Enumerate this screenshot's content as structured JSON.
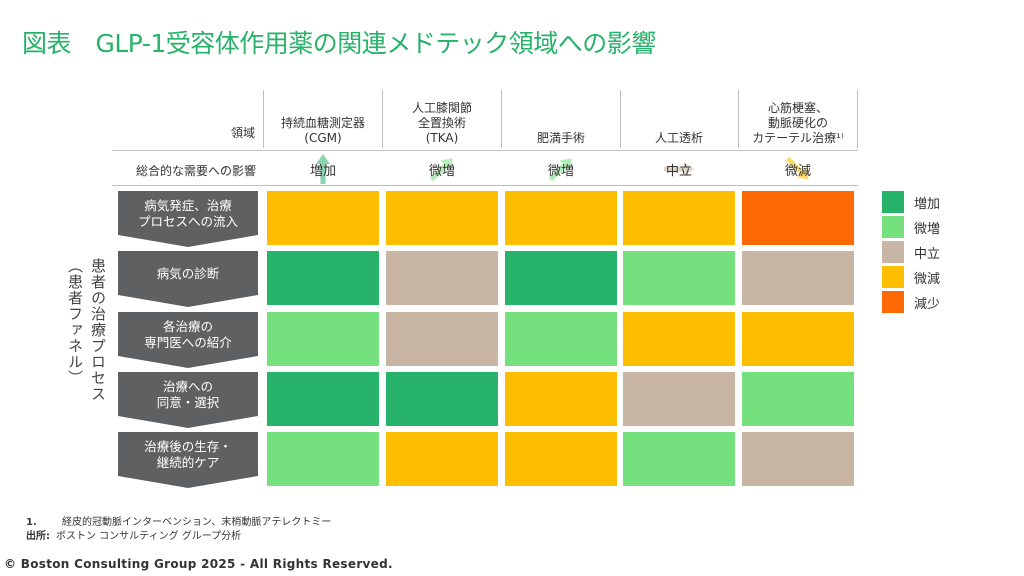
{
  "title": "図表　GLP-1受容体作用薬の関連メドテック領域への影響",
  "header": {
    "domain_label": "領域",
    "overall_label": "総合的な需要への影響"
  },
  "columns": [
    {
      "lines": [
        "持続血糖測定器",
        "(CGM)"
      ],
      "overall": "増加",
      "arrow": "up"
    },
    {
      "lines": [
        "人工膝関節",
        "全置換術",
        "(TKA)"
      ],
      "overall": "微増",
      "arrow": "up-right"
    },
    {
      "lines": [
        "肥満手術"
      ],
      "overall": "微増",
      "arrow": "up-right"
    },
    {
      "lines": [
        "人工透析"
      ],
      "overall": "中立",
      "arrow": "flat"
    },
    {
      "lines": [
        "心筋梗塞、",
        "動脈硬化の",
        "カテーテル治療¹⁾"
      ],
      "overall": "微減",
      "arrow": "down-right"
    }
  ],
  "side_label": {
    "main": "患者の治療プロセス",
    "sub": "（患者ファネル）"
  },
  "process_steps": [
    {
      "lines": [
        "病気発症、治療",
        "プロセスへの流入"
      ]
    },
    {
      "lines": [
        "病気の診断"
      ]
    },
    {
      "lines": [
        "各治療の",
        "専門医への紹介"
      ]
    },
    {
      "lines": [
        "治療への",
        "同意・選択"
      ]
    },
    {
      "lines": [
        "治療後の生存・",
        "継続的ケア"
      ]
    }
  ],
  "matrix": [
    [
      "微減",
      "微減",
      "微減",
      "微減",
      "減少"
    ],
    [
      "増加",
      "中立",
      "増加",
      "微増",
      "中立"
    ],
    [
      "微増",
      "中立",
      "微増",
      "微減",
      "微減"
    ],
    [
      "増加",
      "増加",
      "微減",
      "中立",
      "微増"
    ],
    [
      "微増",
      "微減",
      "微減",
      "微増",
      "中立"
    ]
  ],
  "legend": [
    {
      "label": "増加",
      "color": "#27b36a"
    },
    {
      "label": "微増",
      "color": "#74e07e"
    },
    {
      "label": "中立",
      "color": "#c9b5a4"
    },
    {
      "label": "微減",
      "color": "#fdbe00"
    },
    {
      "label": "減少",
      "color": "#fd6a03"
    }
  ],
  "footnotes": {
    "note_num": "1.",
    "note_text": "経皮的冠動脈インターベンション、末梢動脈アテレクトミー",
    "source_label": "出所:",
    "source_text": "ボストン コンサルティング グループ分析"
  },
  "copyright": "© Boston Consulting Group 2025 - All Rights Reserved."
}
